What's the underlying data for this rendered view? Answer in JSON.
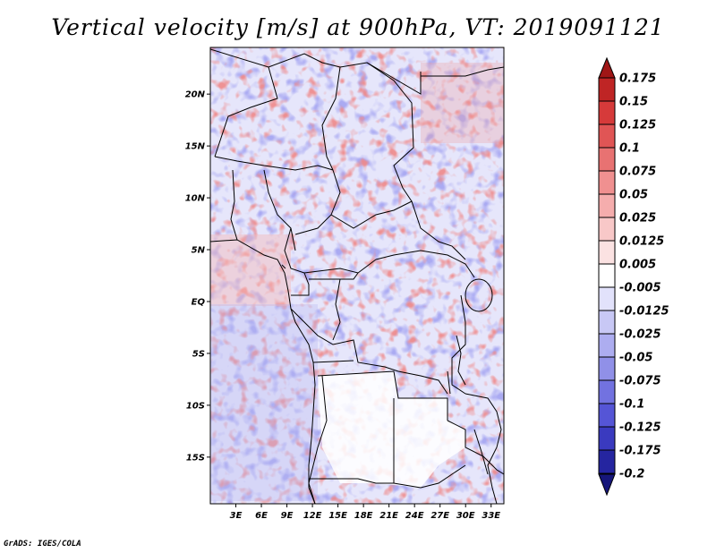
{
  "title": "Vertical velocity [m/s] at 900hPa, VT: 2019091121",
  "credit": "GrADS: IGES/COLA",
  "map": {
    "lat_labels": [
      "20N",
      "15N",
      "10N",
      "5N",
      "EQ",
      "5S",
      "10S",
      "15S"
    ],
    "lat_values": [
      20,
      15,
      10,
      5,
      0,
      -5,
      -10,
      -15
    ],
    "lon_labels": [
      "3E",
      "6E",
      "9E",
      "12E",
      "15E",
      "18E",
      "21E",
      "24E",
      "27E",
      "30E",
      "33E"
    ],
    "lon_values": [
      3,
      6,
      9,
      12,
      15,
      18,
      21,
      24,
      27,
      30,
      33
    ],
    "lon_range": [
      0,
      34.5
    ],
    "lat_range": [
      -19.5,
      24.5
    ]
  },
  "colorbar": {
    "labels": [
      "0.175",
      "0.15",
      "0.125",
      "0.1",
      "0.075",
      "0.05",
      "0.025",
      "0.0125",
      "0.005",
      "-0.005",
      "-0.0125",
      "-0.025",
      "-0.05",
      "-0.075",
      "-0.1",
      "-0.125",
      "-0.175",
      "-0.2"
    ],
    "colors": [
      "#a01616",
      "#bf2525",
      "#d63a3a",
      "#e05555",
      "#e87272",
      "#f09090",
      "#f5adad",
      "#f8c8c8",
      "#fbe2e2",
      "#ffffff",
      "#e2e2fb",
      "#c8c8f5",
      "#adadf0",
      "#9090e8",
      "#7272e0",
      "#5555d6",
      "#3a3abf",
      "#2525a0",
      "#16167a"
    ]
  }
}
